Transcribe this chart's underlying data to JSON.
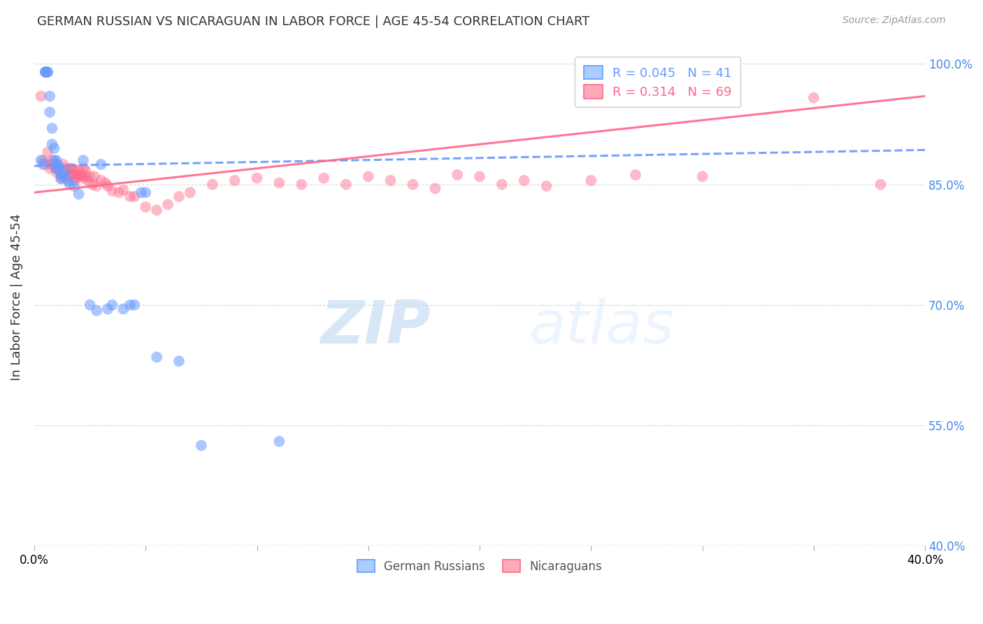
{
  "title": "GERMAN RUSSIAN VS NICARAGUAN IN LABOR FORCE | AGE 45-54 CORRELATION CHART",
  "source": "Source: ZipAtlas.com",
  "ylabel": "In Labor Force | Age 45-54",
  "xmin": 0.0,
  "xmax": 0.4,
  "ymin": 0.4,
  "ymax": 1.02,
  "xticks": [
    0.0,
    0.05,
    0.1,
    0.15,
    0.2,
    0.25,
    0.3,
    0.35,
    0.4
  ],
  "yticks": [
    0.4,
    0.55,
    0.7,
    0.85,
    1.0
  ],
  "ytick_labels": [
    "40.0%",
    "55.0%",
    "70.0%",
    "85.0%",
    "100.0%"
  ],
  "blue_color": "#6699ff",
  "pink_color": "#ff6688",
  "blue_R": 0.045,
  "blue_N": 41,
  "pink_R": 0.314,
  "pink_N": 69,
  "blue_line_x0": 0.0,
  "blue_line_y0": 0.873,
  "blue_line_x1": 0.4,
  "blue_line_y1": 0.893,
  "pink_line_x0": 0.0,
  "pink_line_y0": 0.84,
  "pink_line_x1": 0.4,
  "pink_line_y1": 0.96,
  "blue_scatter_x": [
    0.003,
    0.004,
    0.005,
    0.005,
    0.005,
    0.006,
    0.006,
    0.007,
    0.007,
    0.008,
    0.008,
    0.009,
    0.009,
    0.01,
    0.01,
    0.01,
    0.011,
    0.011,
    0.012,
    0.012,
    0.013,
    0.014,
    0.015,
    0.016,
    0.018,
    0.02,
    0.022,
    0.025,
    0.028,
    0.03,
    0.033,
    0.035,
    0.04,
    0.043,
    0.045,
    0.048,
    0.05,
    0.055,
    0.065,
    0.075,
    0.11
  ],
  "blue_scatter_y": [
    0.88,
    0.875,
    0.99,
    0.99,
    0.99,
    0.99,
    0.99,
    0.96,
    0.94,
    0.92,
    0.9,
    0.895,
    0.88,
    0.88,
    0.875,
    0.87,
    0.873,
    0.868,
    0.862,
    0.857,
    0.86,
    0.865,
    0.855,
    0.85,
    0.848,
    0.838,
    0.88,
    0.7,
    0.693,
    0.875,
    0.695,
    0.7,
    0.695,
    0.7,
    0.7,
    0.84,
    0.84,
    0.635,
    0.63,
    0.525,
    0.53
  ],
  "pink_scatter_x": [
    0.003,
    0.004,
    0.005,
    0.006,
    0.007,
    0.008,
    0.008,
    0.009,
    0.01,
    0.011,
    0.012,
    0.013,
    0.014,
    0.015,
    0.015,
    0.016,
    0.016,
    0.017,
    0.017,
    0.018,
    0.018,
    0.019,
    0.019,
    0.02,
    0.02,
    0.021,
    0.022,
    0.022,
    0.023,
    0.023,
    0.024,
    0.025,
    0.026,
    0.027,
    0.028,
    0.03,
    0.032,
    0.033,
    0.035,
    0.038,
    0.04,
    0.043,
    0.045,
    0.05,
    0.055,
    0.06,
    0.065,
    0.07,
    0.08,
    0.09,
    0.1,
    0.11,
    0.12,
    0.13,
    0.14,
    0.15,
    0.16,
    0.17,
    0.18,
    0.19,
    0.2,
    0.21,
    0.22,
    0.23,
    0.25,
    0.27,
    0.3,
    0.35,
    0.38
  ],
  "pink_scatter_y": [
    0.96,
    0.88,
    0.875,
    0.89,
    0.87,
    0.875,
    0.88,
    0.872,
    0.865,
    0.868,
    0.858,
    0.875,
    0.87,
    0.858,
    0.868,
    0.87,
    0.862,
    0.87,
    0.862,
    0.855,
    0.868,
    0.862,
    0.858,
    0.86,
    0.868,
    0.862,
    0.858,
    0.87,
    0.86,
    0.868,
    0.855,
    0.86,
    0.85,
    0.86,
    0.848,
    0.855,
    0.852,
    0.848,
    0.842,
    0.84,
    0.843,
    0.835,
    0.835,
    0.822,
    0.818,
    0.825,
    0.835,
    0.84,
    0.85,
    0.855,
    0.858,
    0.852,
    0.85,
    0.858,
    0.85,
    0.86,
    0.855,
    0.85,
    0.845,
    0.862,
    0.86,
    0.85,
    0.855,
    0.848,
    0.855,
    0.862,
    0.86,
    0.958,
    0.85
  ],
  "watermark_zip": "ZIP",
  "watermark_atlas": "atlas",
  "background_color": "#ffffff",
  "grid_color": "#d0d0d0",
  "title_color": "#333333",
  "axis_label_color": "#333333",
  "right_ytick_color": "#4488ee"
}
